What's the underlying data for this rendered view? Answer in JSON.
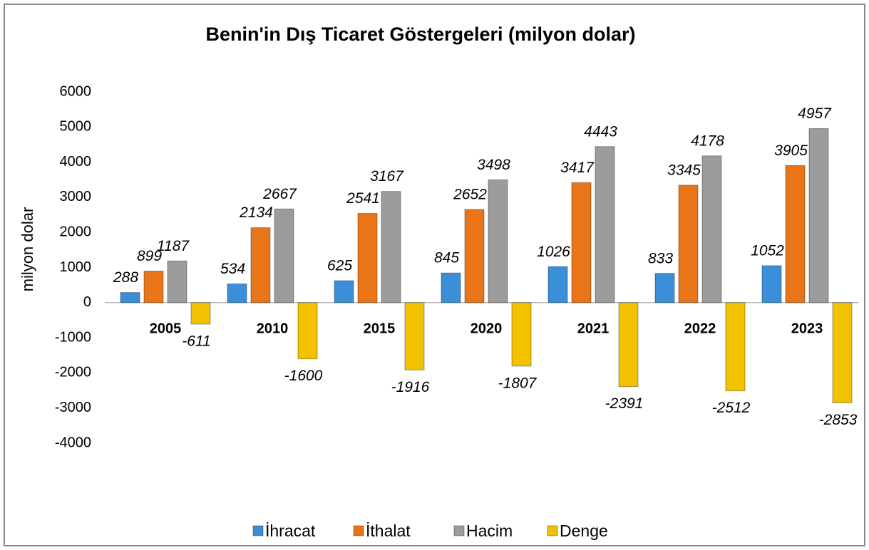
{
  "chart_data": {
    "type": "bar",
    "title": "Benin'in Dış Ticaret Göstergeleri (milyon dolar)",
    "y_label": "milyon dolar",
    "categories": [
      "2005",
      "2010",
      "2015",
      "2020",
      "2021",
      "2022",
      "2023"
    ],
    "series": [
      {
        "name": "İhracat",
        "color": "#3b8fd8",
        "values": [
          288,
          534,
          625,
          845,
          1026,
          833,
          1052
        ]
      },
      {
        "name": "İthalat",
        "color": "#ea7418",
        "values": [
          899,
          2134,
          2541,
          2652,
          3417,
          3345,
          3905
        ]
      },
      {
        "name": "Hacim",
        "color": "#9c9c9c",
        "values": [
          1187,
          2667,
          3167,
          3498,
          4443,
          4178,
          4957
        ]
      },
      {
        "name": "Denge",
        "color": "#f2c200",
        "values": [
          -611,
          -1600,
          -1916,
          -1807,
          -2391,
          -2512,
          -2853
        ]
      }
    ],
    "ylim": [
      -4000,
      6000
    ],
    "yticks": [
      -4000,
      -3000,
      -2000,
      -1000,
      0,
      1000,
      2000,
      3000,
      4000,
      5000,
      6000
    ],
    "grid": false,
    "legend": "bottom"
  }
}
